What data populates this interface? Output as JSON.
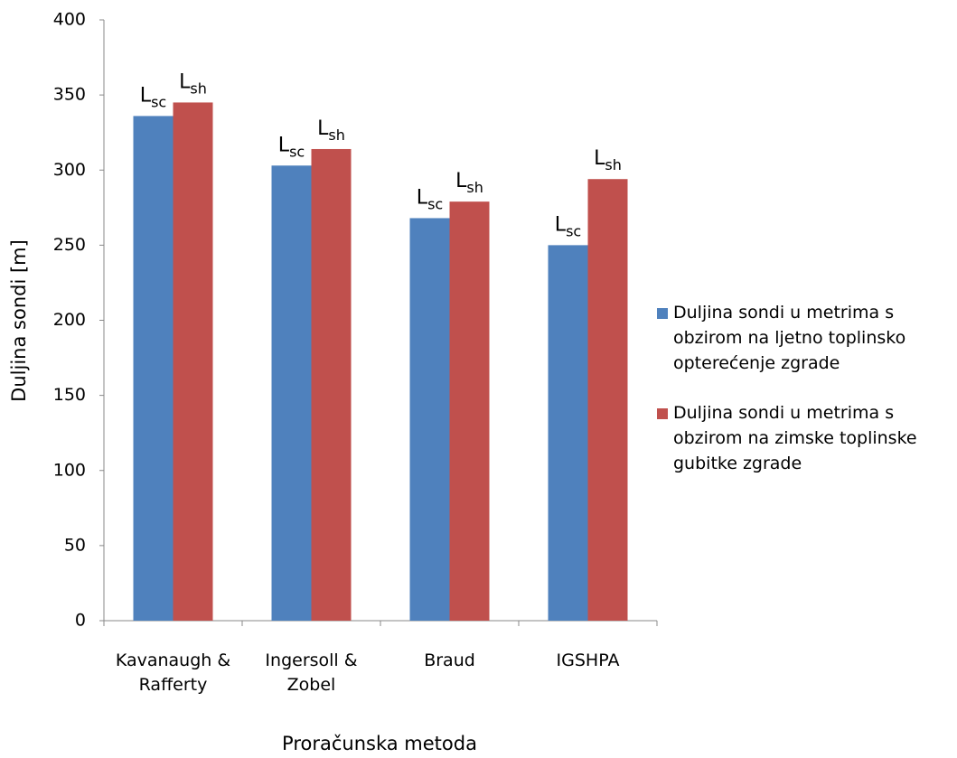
{
  "chart_data": {
    "type": "bar",
    "categories": [
      "Kavanaugh & Rafferty",
      "Ingersoll & Zobel",
      "Braud",
      "IGSHPA"
    ],
    "series": [
      {
        "name": "Duljina sondi u metrima s obzirom na ljetno toplinsko opterećenje zgrade",
        "color": "#4f81bd",
        "values": [
          336,
          303,
          268,
          250
        ],
        "bar_labels": [
          {
            "base": "L",
            "sub": "sc"
          },
          {
            "base": "L",
            "sub": "sc"
          },
          {
            "base": "L",
            "sub": "sc"
          },
          {
            "base": "L",
            "sub": "sc"
          }
        ]
      },
      {
        "name": "Duljina sondi u metrima s obzirom na zimske toplinske gubitke zgrade",
        "color": "#c0504d",
        "values": [
          345,
          314,
          279,
          294
        ],
        "bar_labels": [
          {
            "base": "L",
            "sub": "sh"
          },
          {
            "base": "L",
            "sub": "sh"
          },
          {
            "base": "L",
            "sub": "sh"
          },
          {
            "base": "L",
            "sub": "sh"
          }
        ]
      }
    ],
    "y_label": "Duljina sondi [m]",
    "x_label": "Proračunska metoda",
    "ylim": [
      0,
      400
    ],
    "yticks": [
      0,
      50,
      100,
      150,
      200,
      250,
      300,
      350,
      400
    ],
    "legend": "right"
  }
}
